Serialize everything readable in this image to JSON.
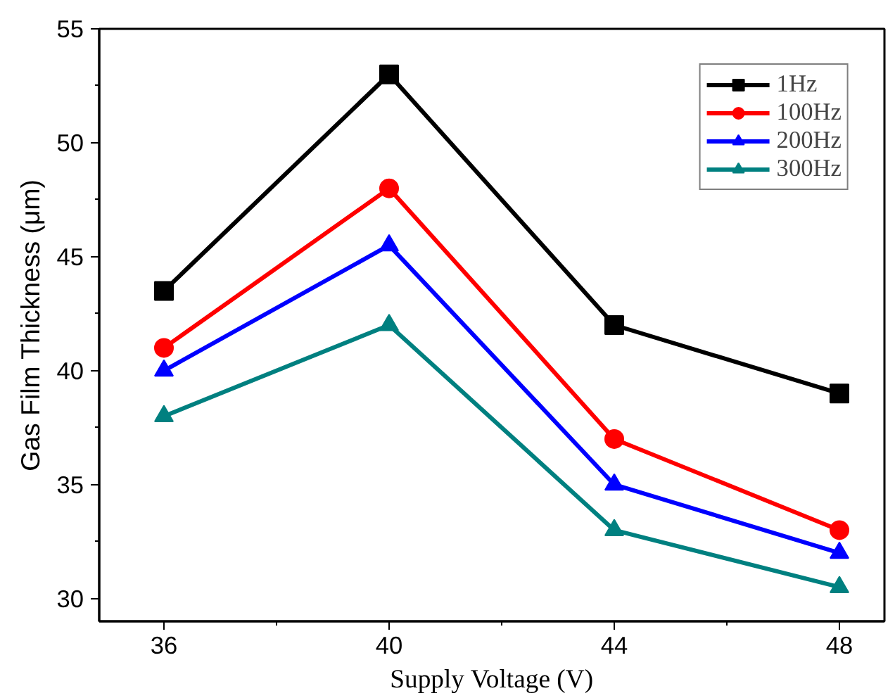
{
  "chart_data": {
    "type": "line",
    "xlabel": "Supply Voltage (V)",
    "ylabel": "Gas Film Thickness (μm)",
    "x": [
      36,
      40,
      44,
      48
    ],
    "series": [
      {
        "name": "1Hz",
        "color": "#000000",
        "marker": "square",
        "values": [
          43.5,
          53,
          42,
          39
        ]
      },
      {
        "name": "100Hz",
        "color": "#ff0000",
        "marker": "circle",
        "values": [
          41,
          48,
          37,
          33
        ]
      },
      {
        "name": "200Hz",
        "color": "#0000ff",
        "marker": "triangle",
        "values": [
          40,
          45.5,
          35,
          32
        ]
      },
      {
        "name": "300Hz",
        "color": "#008080",
        "marker": "triangle",
        "values": [
          38,
          42,
          33,
          30.5
        ]
      }
    ],
    "xlim": [
      34.85,
      48.8
    ],
    "ylim": [
      29,
      55
    ],
    "xticks": [
      36,
      40,
      44,
      48
    ],
    "yticks": [
      30,
      35,
      40,
      45,
      50,
      55
    ],
    "grid": false,
    "legend": "top right",
    "line_style": "solid"
  }
}
